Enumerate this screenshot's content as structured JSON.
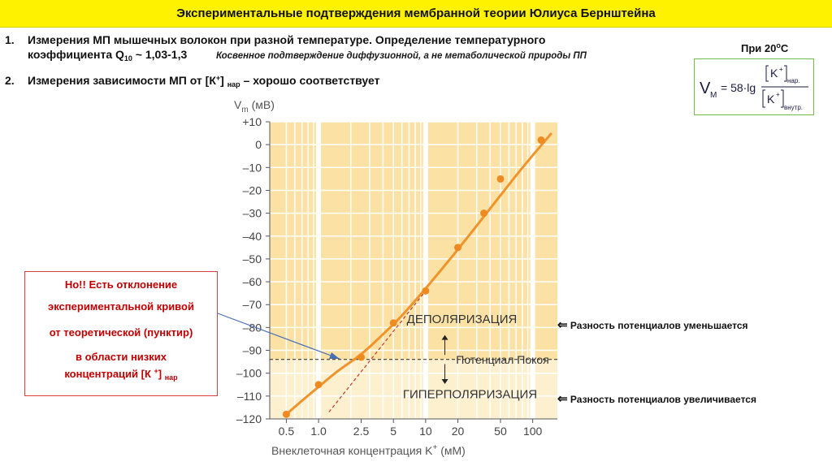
{
  "header": {
    "title": "Экспериментальные подтверждения мембранной теории Юлиуса Бернштейна"
  },
  "items": [
    {
      "num": "1.",
      "line1": "Измерения МП мышечных волокон при разной температуре. Определение температурного",
      "line2_prefix": "коэффициента  Q",
      "line2_sub": "10",
      "line2_suffix": " ~ 1,03-1,3",
      "note": "Косвенное подтверждение диффузионной, а не метаболической природы ПП"
    },
    {
      "num": "2.",
      "prefix": "Измерения зависимости МП от [К",
      "sup": "+",
      "mid": "] ",
      "sub": "нар",
      "suffix": " – хорошо соответствует"
    }
  ],
  "temperature": {
    "label": "При 20",
    "sup": "о",
    "unit": "С"
  },
  "formula": {
    "v": "V",
    "v_sub": "M",
    "eq": "= 58·lg",
    "k": "K",
    "plus": "+",
    "out_sub": "нар.",
    "in_sub": "внутр."
  },
  "note": {
    "lines": [
      "Но!! Есть отклонение",
      "экспериментальной кривой",
      "от теоретической (пунктир)",
      "в области низких"
    ],
    "last_prefix": "концентраций  [К ",
    "last_sup": "+",
    "last_mid": "] ",
    "last_sub": "нар"
  },
  "right_notes": {
    "depol": "Разность потенциалов уменьшается",
    "hyper": "Разность потенциалов увеличивается",
    "arrow": "⇐"
  },
  "chart_data": {
    "type": "scatter",
    "ylabel_main": "V",
    "ylabel_sub": "m",
    "ylabel_unit": " (мВ)",
    "xlabel_main": "Внеклеточная концентрация K",
    "xlabel_sup": "+",
    "xlabel_unit": " (мМ)",
    "x_scale": "log",
    "ylim": [
      -120,
      10
    ],
    "y_ticks": [
      "+10",
      "0",
      "–10",
      "–20",
      "–30",
      "–40",
      "–50",
      "–60",
      "–70",
      "–80",
      "–90",
      "–100",
      "–110",
      "–120"
    ],
    "y_tick_values": [
      10,
      0,
      -10,
      -20,
      -30,
      -40,
      -50,
      -60,
      -70,
      -80,
      -90,
      -100,
      -110,
      -120
    ],
    "x_ticks": [
      "0.5",
      "1.0",
      "2.5",
      "5",
      "10",
      "20",
      "50",
      "100"
    ],
    "x_tick_values": [
      0.5,
      1,
      2.5,
      5,
      10,
      20,
      50,
      100
    ],
    "points": [
      {
        "x": 0.5,
        "y": -118
      },
      {
        "x": 1.0,
        "y": -105
      },
      {
        "x": 2.5,
        "y": -93
      },
      {
        "x": 5,
        "y": -78
      },
      {
        "x": 10,
        "y": -64
      },
      {
        "x": 20,
        "y": -45
      },
      {
        "x": 35,
        "y": -30
      },
      {
        "x": 50,
        "y": -15
      },
      {
        "x": 120,
        "y": 2
      }
    ],
    "fit_curve": [
      {
        "x": 0.5,
        "y": -118
      },
      {
        "x": 0.7,
        "y": -112
      },
      {
        "x": 1.0,
        "y": -106
      },
      {
        "x": 1.5,
        "y": -99
      },
      {
        "x": 2.5,
        "y": -92
      },
      {
        "x": 4,
        "y": -83
      },
      {
        "x": 6,
        "y": -75
      },
      {
        "x": 10,
        "y": -63
      },
      {
        "x": 20,
        "y": -46
      },
      {
        "x": 40,
        "y": -28
      },
      {
        "x": 80,
        "y": -10
      },
      {
        "x": 150,
        "y": 5
      }
    ],
    "theory_line": [
      {
        "x": 1.25,
        "y": -117
      },
      {
        "x": 10,
        "y": -64
      }
    ],
    "resting_potential": -94,
    "labels": {
      "depol": "ДЕПОЛЯРИЗАЦИЯ",
      "rest": "Потенциал Покоя",
      "hyper": "ГИПЕРПОЛЯРИЗАЦИЯ"
    },
    "colors": {
      "curve": "#f0932b",
      "point": "#ee8a22",
      "plot_bg": "#fbe2a4",
      "lower_bg": "#fdf0cf",
      "theory": "#c0392b",
      "note_arrow": "#4a6fb5"
    }
  }
}
